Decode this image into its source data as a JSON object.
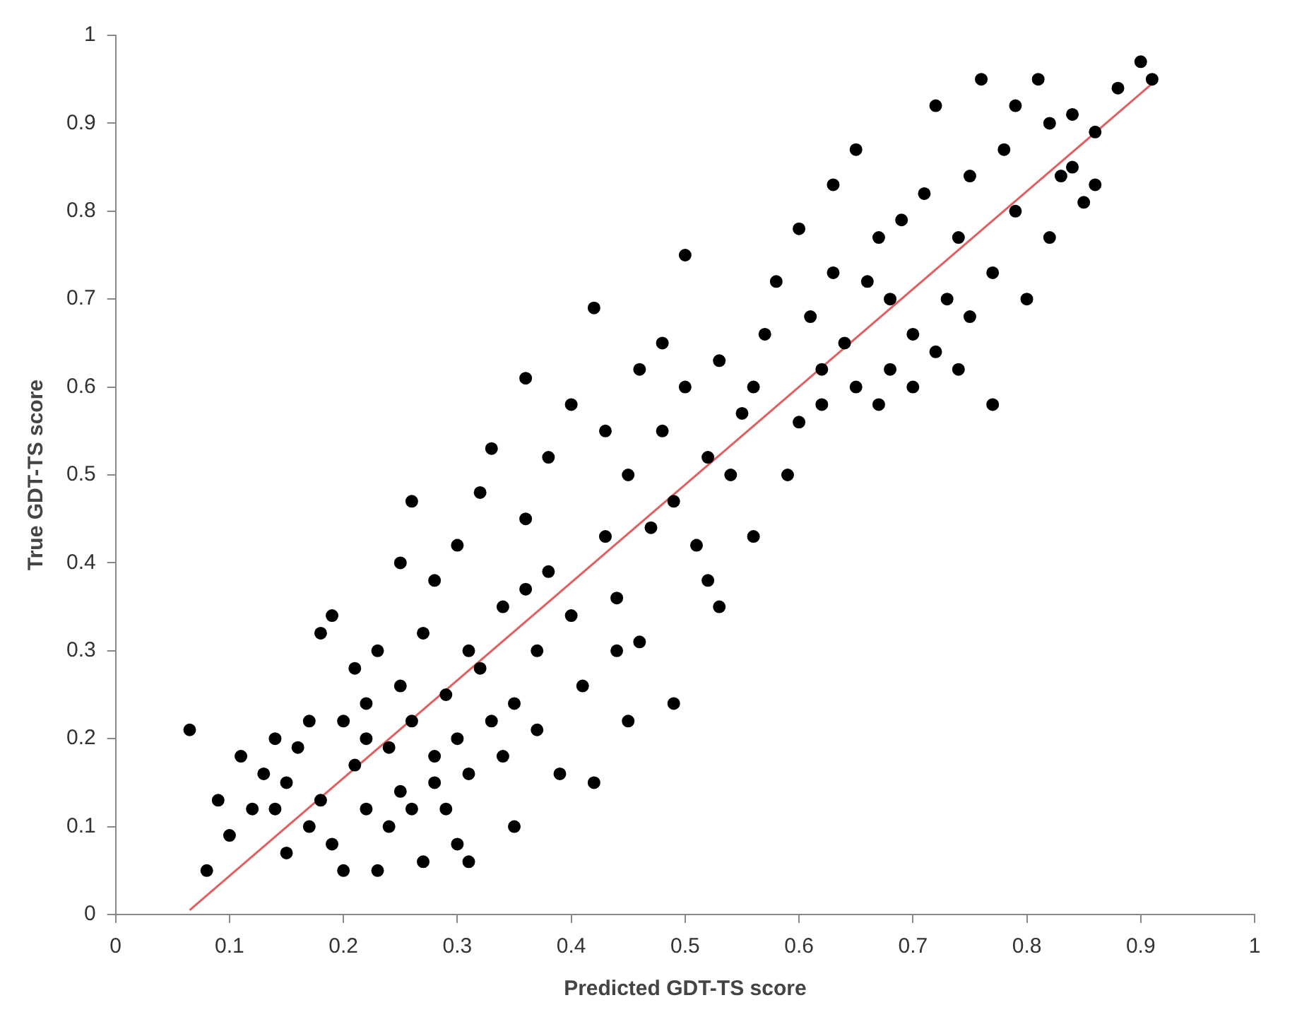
{
  "chart_data": {
    "type": "scatter",
    "xlabel": "Predicted GDT-TS score",
    "ylabel": "True GDT-TS score",
    "xlim": [
      0,
      1
    ],
    "ylim": [
      0,
      1
    ],
    "xticks": [
      0,
      0.1,
      0.2,
      0.3,
      0.4,
      0.5,
      0.6,
      0.7,
      0.8,
      0.9,
      1
    ],
    "yticks": [
      0,
      0.1,
      0.2,
      0.3,
      0.4,
      0.5,
      0.6,
      0.7,
      0.8,
      0.9,
      1
    ],
    "grid": false,
    "legend": false,
    "series": [
      {
        "marker": "circle",
        "color": "#000000",
        "x": [
          0.065,
          0.08,
          0.09,
          0.1,
          0.11,
          0.12,
          0.13,
          0.14,
          0.15,
          0.15,
          0.16,
          0.17,
          0.18,
          0.18,
          0.19,
          0.19,
          0.2,
          0.2,
          0.21,
          0.21,
          0.22,
          0.22,
          0.23,
          0.23,
          0.24,
          0.24,
          0.25,
          0.25,
          0.26,
          0.26,
          0.27,
          0.27,
          0.28,
          0.28,
          0.29,
          0.29,
          0.3,
          0.3,
          0.31,
          0.31,
          0.32,
          0.32,
          0.33,
          0.33,
          0.34,
          0.34,
          0.35,
          0.35,
          0.36,
          0.36,
          0.37,
          0.37,
          0.38,
          0.38,
          0.39,
          0.4,
          0.4,
          0.41,
          0.42,
          0.42,
          0.43,
          0.43,
          0.44,
          0.45,
          0.45,
          0.46,
          0.46,
          0.47,
          0.48,
          0.48,
          0.49,
          0.49,
          0.5,
          0.5,
          0.51,
          0.52,
          0.52,
          0.53,
          0.53,
          0.54,
          0.55,
          0.56,
          0.57,
          0.58,
          0.59,
          0.6,
          0.6,
          0.61,
          0.62,
          0.63,
          0.63,
          0.64,
          0.65,
          0.65,
          0.66,
          0.67,
          0.67,
          0.68,
          0.69,
          0.7,
          0.7,
          0.71,
          0.72,
          0.72,
          0.73,
          0.74,
          0.75,
          0.75,
          0.76,
          0.77,
          0.77,
          0.78,
          0.79,
          0.8,
          0.81,
          0.82,
          0.82,
          0.83,
          0.84,
          0.85,
          0.86,
          0.86,
          0.88,
          0.9,
          0.91,
          0.25,
          0.28,
          0.3,
          0.22,
          0.26,
          0.31,
          0.17,
          0.14,
          0.36,
          0.44,
          0.56,
          0.62,
          0.68,
          0.74,
          0.79,
          0.84
        ],
        "values": [
          0.21,
          0.05,
          0.13,
          0.09,
          0.18,
          0.12,
          0.16,
          0.2,
          0.07,
          0.15,
          0.19,
          0.1,
          0.13,
          0.32,
          0.34,
          0.08,
          0.22,
          0.05,
          0.17,
          0.28,
          0.12,
          0.24,
          0.05,
          0.3,
          0.19,
          0.1,
          0.4,
          0.14,
          0.22,
          0.47,
          0.32,
          0.06,
          0.18,
          0.38,
          0.25,
          0.12,
          0.2,
          0.42,
          0.16,
          0.06,
          0.48,
          0.28,
          0.22,
          0.53,
          0.35,
          0.18,
          0.24,
          0.1,
          0.61,
          0.45,
          0.3,
          0.21,
          0.39,
          0.52,
          0.16,
          0.58,
          0.34,
          0.26,
          0.69,
          0.15,
          0.43,
          0.55,
          0.36,
          0.5,
          0.22,
          0.31,
          0.62,
          0.44,
          0.65,
          0.55,
          0.24,
          0.47,
          0.6,
          0.75,
          0.42,
          0.52,
          0.38,
          0.35,
          0.63,
          0.5,
          0.57,
          0.43,
          0.66,
          0.72,
          0.5,
          0.78,
          0.56,
          0.68,
          0.62,
          0.73,
          0.83,
          0.65,
          0.6,
          0.87,
          0.72,
          0.58,
          0.77,
          0.62,
          0.79,
          0.66,
          0.6,
          0.82,
          0.92,
          0.64,
          0.7,
          0.77,
          0.68,
          0.84,
          0.95,
          0.58,
          0.73,
          0.87,
          0.92,
          0.7,
          0.95,
          0.77,
          0.9,
          0.84,
          0.91,
          0.81,
          0.89,
          0.83,
          0.94,
          0.97,
          0.95,
          0.26,
          0.15,
          0.08,
          0.2,
          0.12,
          0.3,
          0.22,
          0.12,
          0.37,
          0.3,
          0.6,
          0.58,
          0.7,
          0.62,
          0.8,
          0.85
        ]
      },
      {
        "type": "line",
        "marker": "none",
        "color": "#e06060",
        "x": [
          0.065,
          0.91
        ],
        "values": [
          0.005,
          0.945
        ]
      }
    ]
  }
}
